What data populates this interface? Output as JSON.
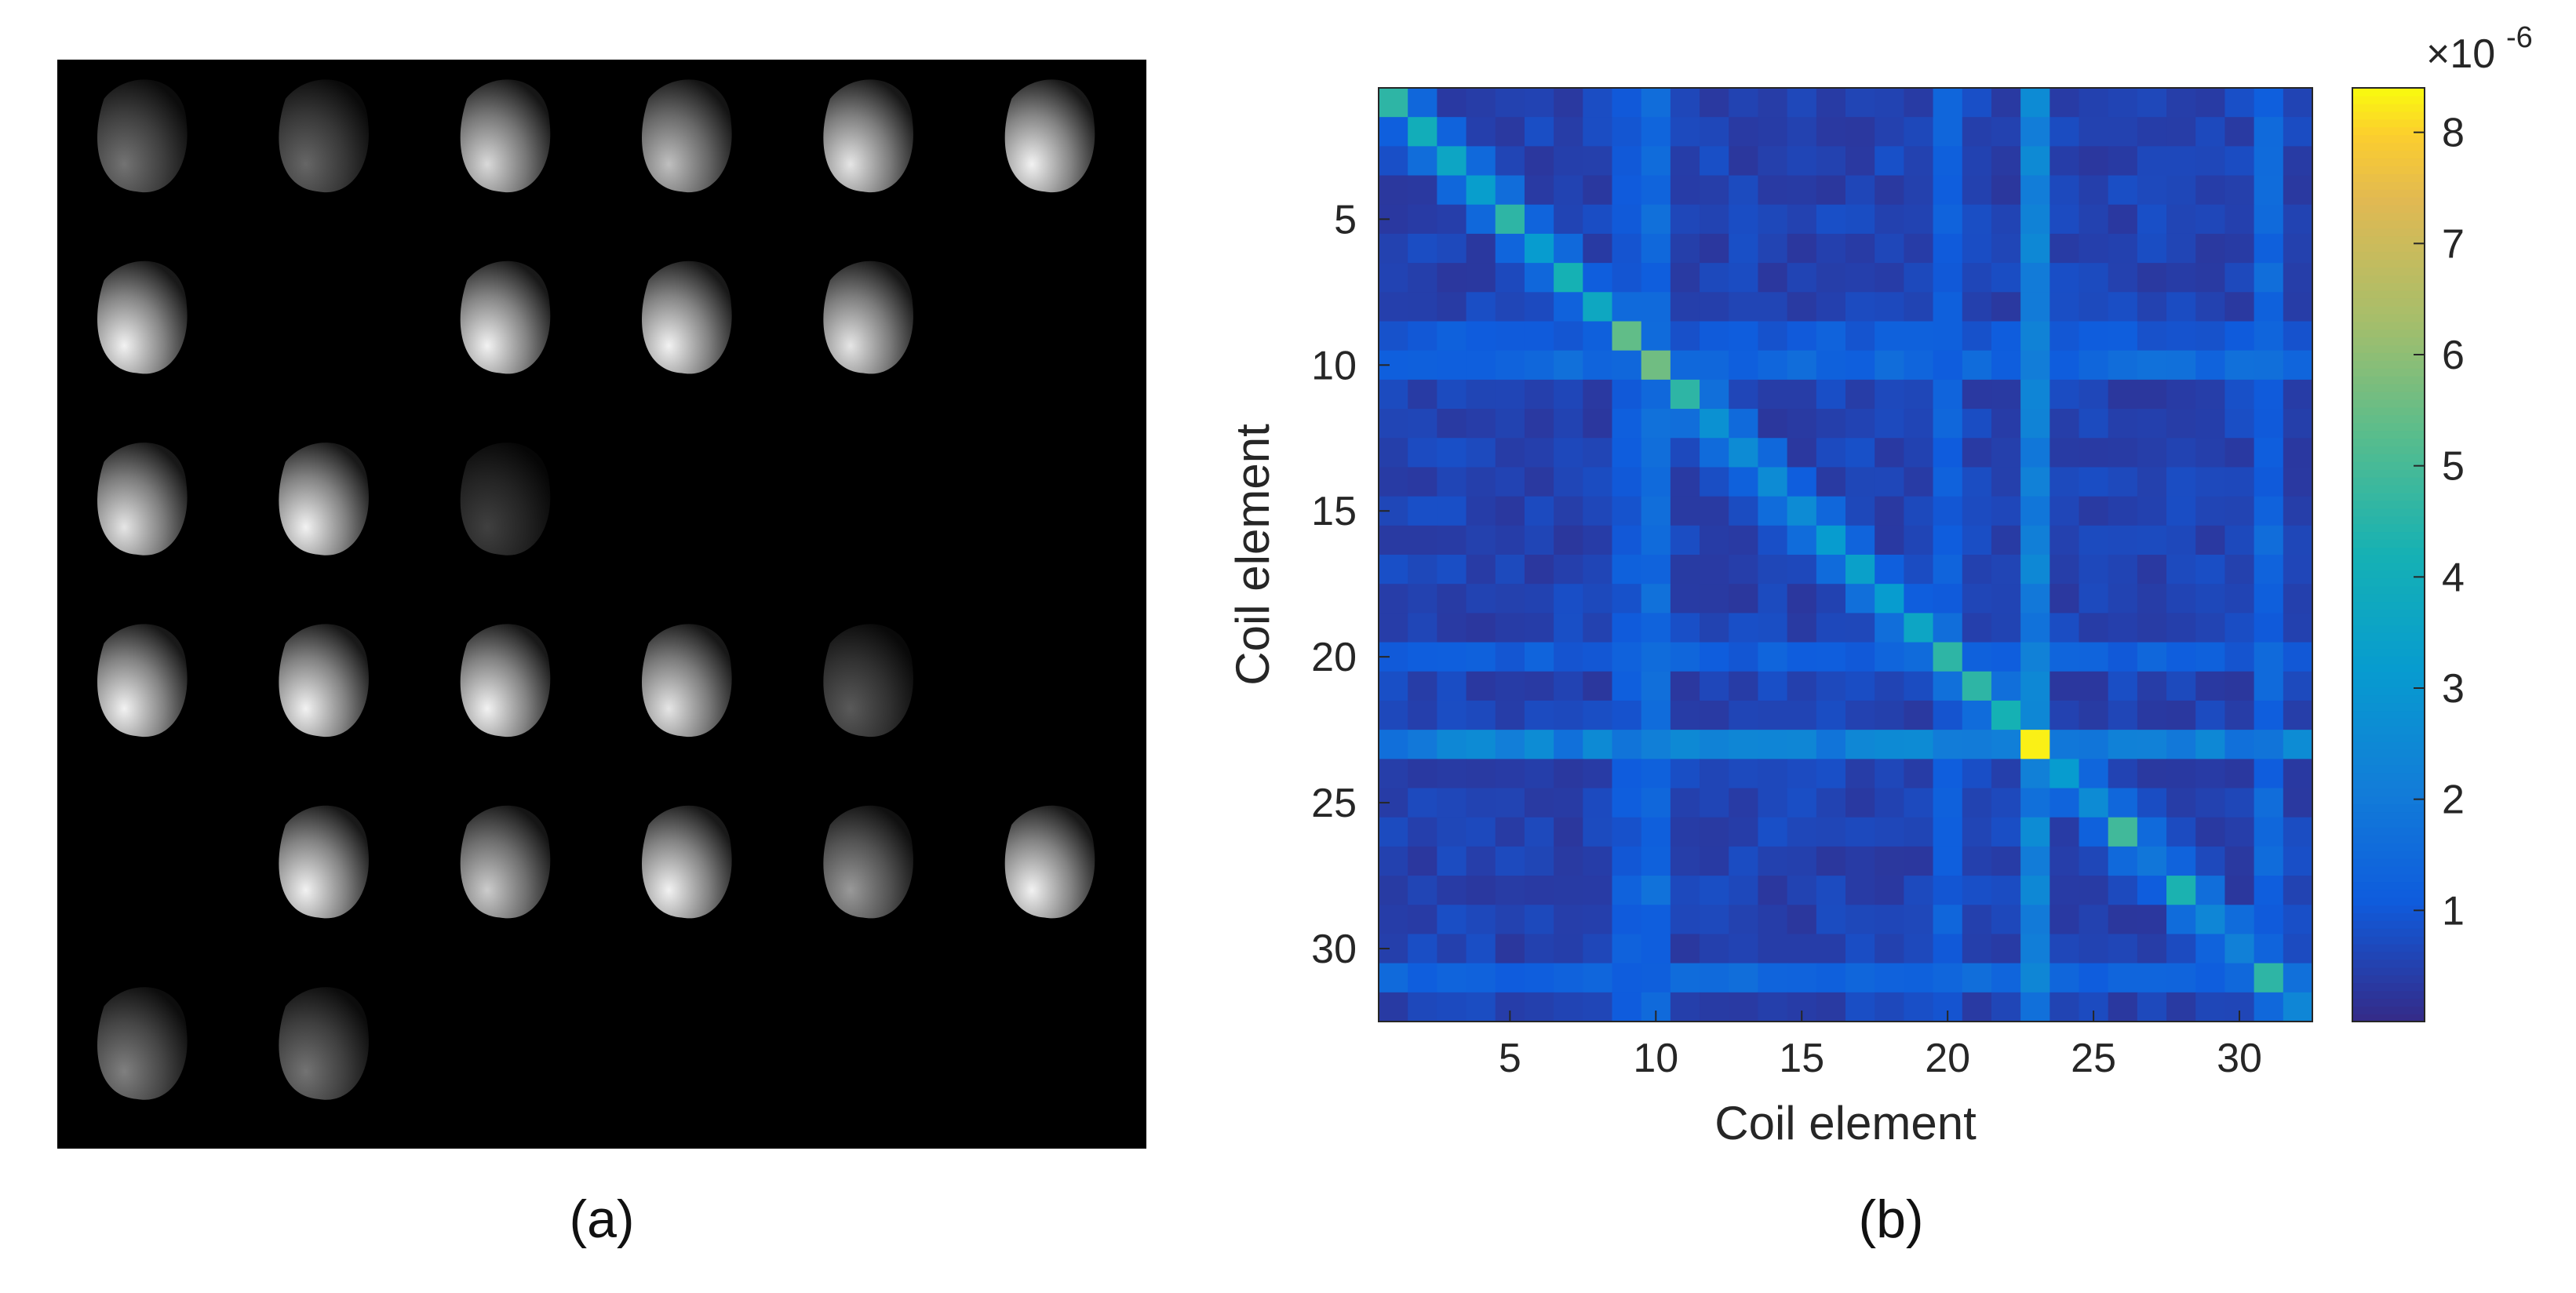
{
  "panel_a": {
    "caption": "(a)",
    "grid_rows": 6,
    "grid_cols": 6,
    "background_color": "#000000",
    "blob_color": "#ffffff",
    "description_kind": "coil sensitivity maps",
    "blobs": [
      {
        "row": 0,
        "col": 0,
        "brightness": 0.45,
        "shape": "blob"
      },
      {
        "row": 0,
        "col": 1,
        "brightness": 0.4,
        "shape": "blob"
      },
      {
        "row": 0,
        "col": 2,
        "brightness": 0.85,
        "shape": "blob"
      },
      {
        "row": 0,
        "col": 3,
        "brightness": 0.75,
        "shape": "blob"
      },
      {
        "row": 0,
        "col": 4,
        "brightness": 0.9,
        "shape": "blob"
      },
      {
        "row": 0,
        "col": 5,
        "brightness": 0.95,
        "shape": "blob"
      },
      {
        "row": 1,
        "col": 0,
        "brightness": 0.95,
        "shape": "blob"
      },
      {
        "row": 1,
        "col": 2,
        "brightness": 0.95,
        "shape": "blob"
      },
      {
        "row": 1,
        "col": 3,
        "brightness": 0.95,
        "shape": "blob"
      },
      {
        "row": 1,
        "col": 4,
        "brightness": 0.9,
        "shape": "blob"
      },
      {
        "row": 2,
        "col": 0,
        "brightness": 0.9,
        "shape": "blob"
      },
      {
        "row": 2,
        "col": 1,
        "brightness": 0.95,
        "shape": "blob"
      },
      {
        "row": 2,
        "col": 2,
        "brightness": 0.25,
        "shape": "blob"
      },
      {
        "row": 3,
        "col": 0,
        "brightness": 0.95,
        "shape": "blob"
      },
      {
        "row": 3,
        "col": 1,
        "brightness": 0.95,
        "shape": "blob"
      },
      {
        "row": 3,
        "col": 2,
        "brightness": 0.95,
        "shape": "blob"
      },
      {
        "row": 3,
        "col": 3,
        "brightness": 0.9,
        "shape": "blob"
      },
      {
        "row": 3,
        "col": 4,
        "brightness": 0.35,
        "shape": "blob"
      },
      {
        "row": 4,
        "col": 1,
        "brightness": 0.95,
        "shape": "blob"
      },
      {
        "row": 4,
        "col": 2,
        "brightness": 0.8,
        "shape": "blob"
      },
      {
        "row": 4,
        "col": 3,
        "brightness": 0.95,
        "shape": "blob"
      },
      {
        "row": 4,
        "col": 4,
        "brightness": 0.6,
        "shape": "blob"
      },
      {
        "row": 4,
        "col": 5,
        "brightness": 0.95,
        "shape": "blob"
      },
      {
        "row": 5,
        "col": 0,
        "brightness": 0.5,
        "shape": "blob"
      },
      {
        "row": 5,
        "col": 1,
        "brightness": 0.45,
        "shape": "blob"
      }
    ]
  },
  "panel_b": {
    "caption": "(b)"
  },
  "chart_data": {
    "type": "heatmap",
    "title": "",
    "xlabel": "Coil element",
    "ylabel": "Coil element",
    "size": 32,
    "x_ticks": [
      5,
      10,
      15,
      20,
      25,
      30
    ],
    "y_ticks": [
      5,
      10,
      15,
      20,
      25,
      30
    ],
    "xlim": [
      0.5,
      32.5
    ],
    "ylim": [
      0.5,
      32.5
    ],
    "y_reversed": true,
    "colormap": "parula",
    "colorbar": {
      "min": 0,
      "max": 8.4,
      "ticks": [
        1,
        2,
        3,
        4,
        5,
        6,
        7,
        8
      ],
      "exponent_label": "×10",
      "exponent": "-6"
    },
    "grid": false,
    "diagonal": [
      4.6,
      4.0,
      3.6,
      3.3,
      4.6,
      3.2,
      4.2,
      3.7,
      5.4,
      5.6,
      4.6,
      2.8,
      2.6,
      2.6,
      2.6,
      3.2,
      3.4,
      3.2,
      3.6,
      4.6,
      4.6,
      4.2,
      8.3,
      3.2,
      2.6,
      4.9,
      1.9,
      4.3,
      2.4,
      2.2,
      4.6,
      2.4
    ],
    "off_diagonal_typical": 0.55,
    "strong_rows_cols": [
      {
        "index": 23,
        "value": 2.4
      },
      {
        "index": 10,
        "value": 1.6
      },
      {
        "index": 31,
        "value": 1.5
      },
      {
        "index": 20,
        "value": 1.3
      },
      {
        "index": 9,
        "value": 1.2
      }
    ]
  }
}
